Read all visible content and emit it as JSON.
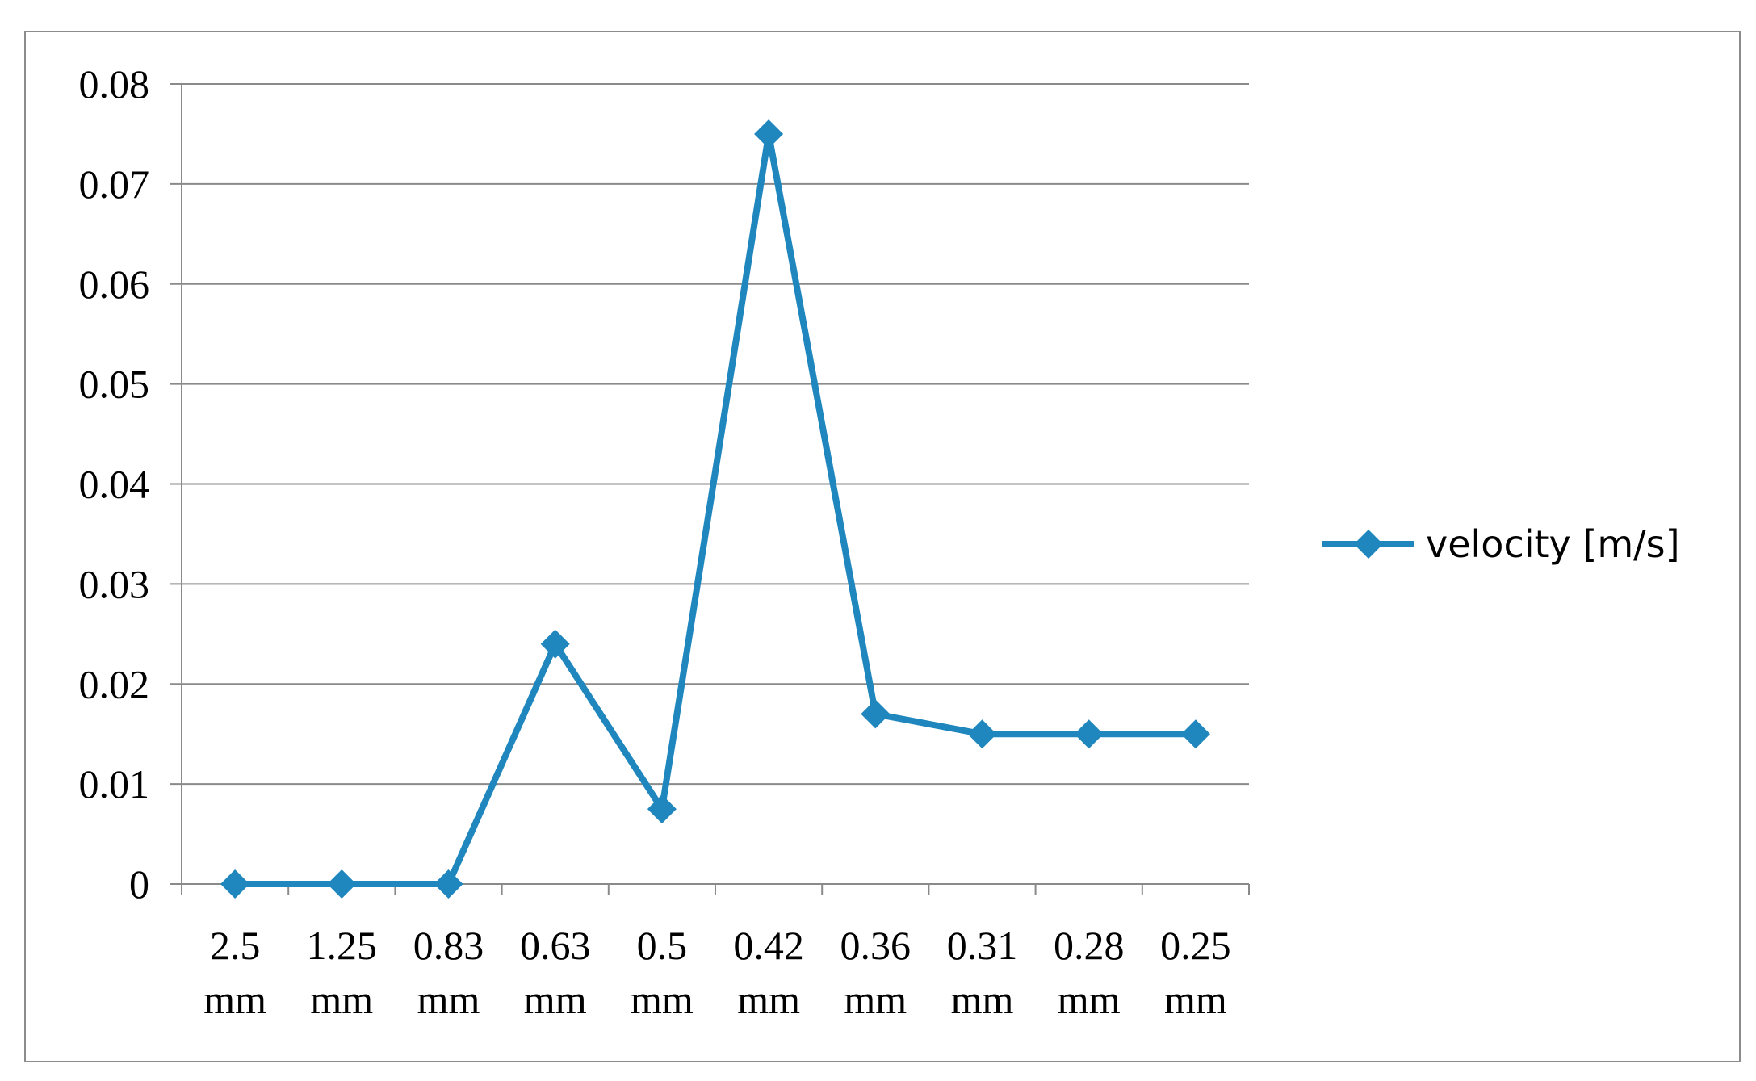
{
  "chart_data": {
    "type": "line",
    "title": "",
    "xlabel": "",
    "ylabel": "",
    "categories": [
      [
        "2.5",
        "mm"
      ],
      [
        "1.25",
        "mm"
      ],
      [
        "0.83",
        "mm"
      ],
      [
        "0.63",
        "mm"
      ],
      [
        "0.5",
        "mm"
      ],
      [
        "0.42",
        "mm"
      ],
      [
        "0.36",
        "mm"
      ],
      [
        "0.31",
        "mm"
      ],
      [
        "0.28",
        "mm"
      ],
      [
        "0.25",
        "mm"
      ]
    ],
    "series": [
      {
        "name": "velocity [m/s]",
        "color": "#1f87bd",
        "marker": "diamond",
        "values": [
          0,
          0,
          0,
          0.024,
          0.0075,
          0.075,
          0.017,
          0.015,
          0.015,
          0.015
        ]
      }
    ],
    "ylim": [
      0,
      0.08
    ],
    "yticks": [
      "0",
      "0.01",
      "0.02",
      "0.03",
      "0.04",
      "0.05",
      "0.06",
      "0.07",
      "0.08"
    ],
    "grid": true,
    "legend_position": "right"
  }
}
